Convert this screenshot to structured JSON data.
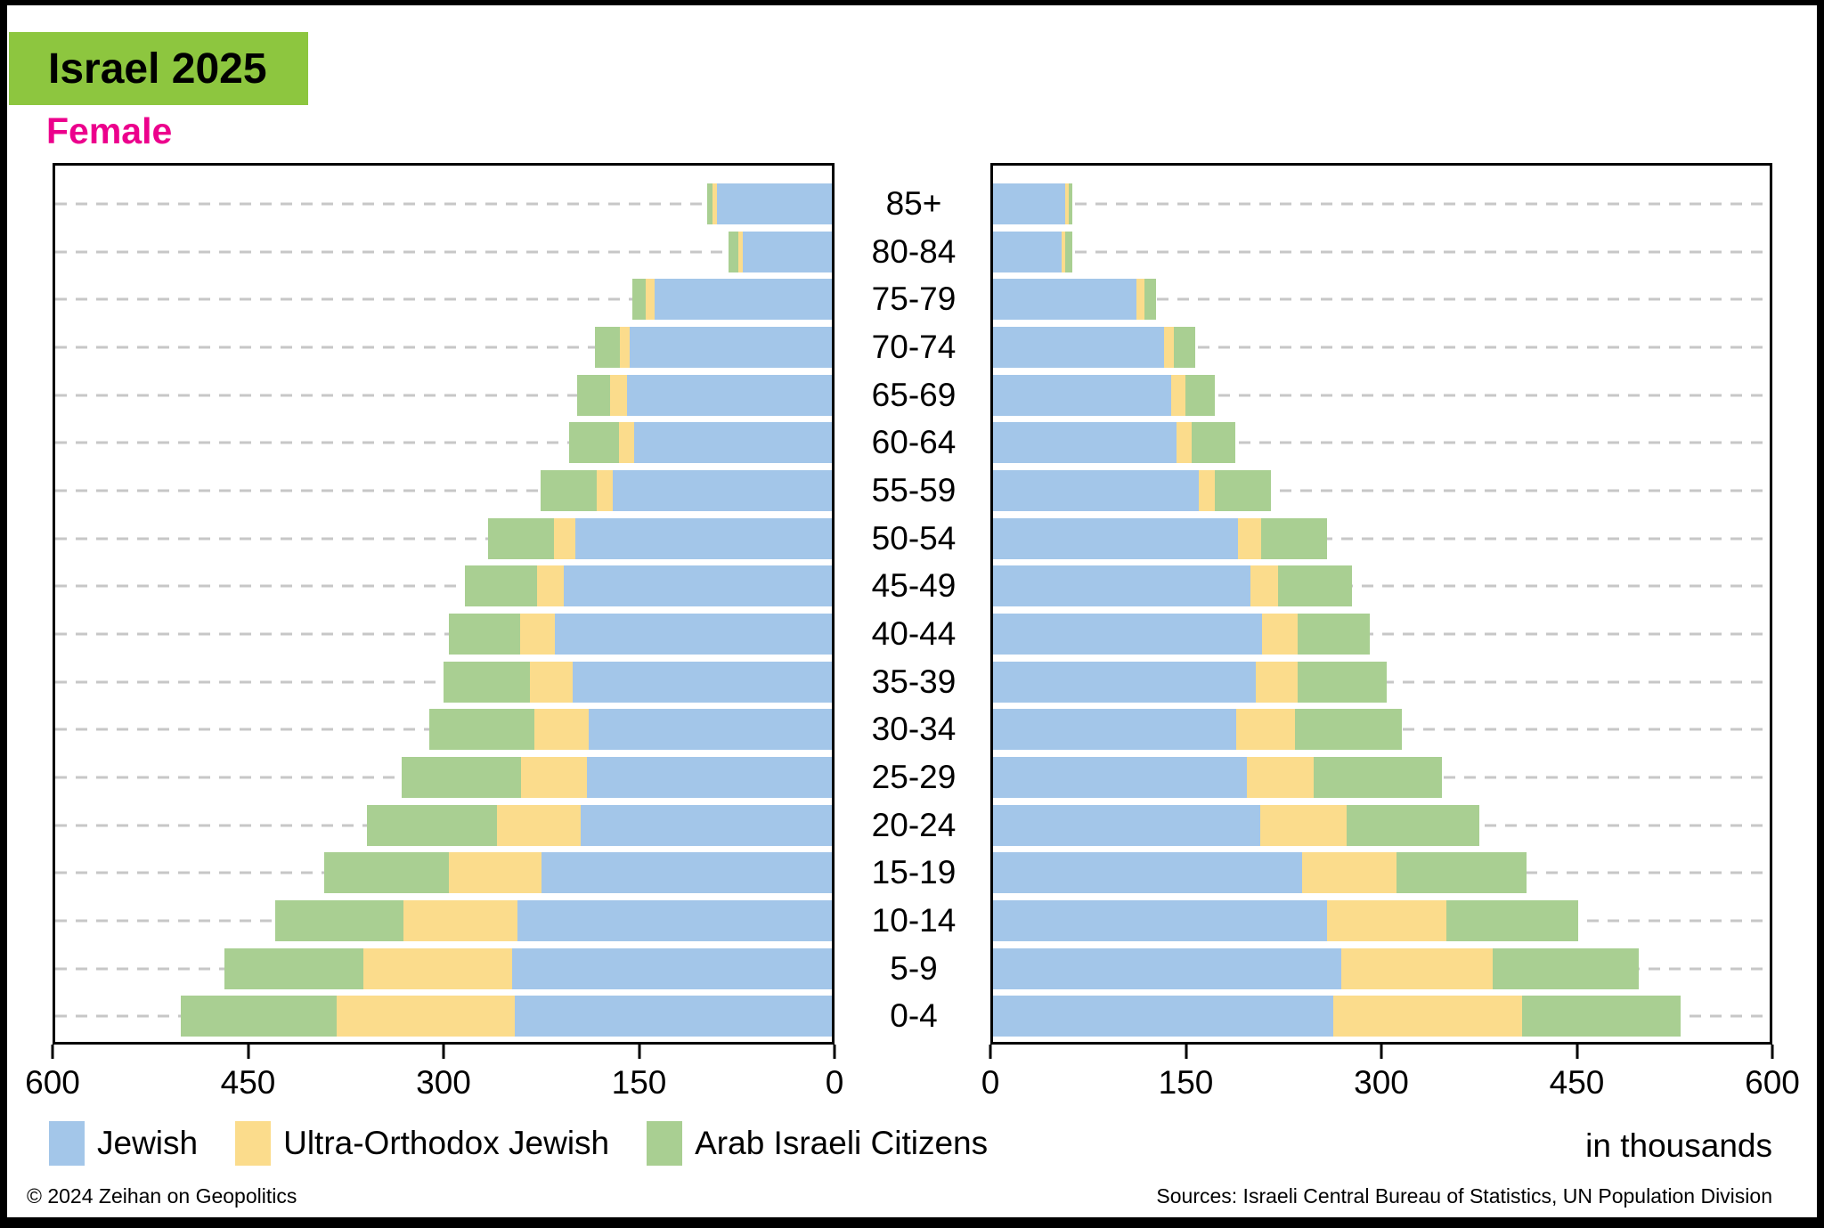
{
  "title": "Israel 2025",
  "left_panel_label": "Female",
  "in_thousands_note": "in thousands",
  "footer": {
    "copyright": "© 2024 Zeihan on Geopolitics",
    "sources": "Sources: Israeli Central Bureau of Statistics, UN Population Division"
  },
  "colors": {
    "title_background": "#8dc63f",
    "female_label": "#ec008c",
    "jewish": "#a3c6e9",
    "ultra_orthodox": "#fbdc8c",
    "arab": "#a9cf92",
    "gridline": "#c7c7c7",
    "frame": "#000000"
  },
  "legend": [
    {
      "label": "Jewish",
      "color": "#a3c6e9"
    },
    {
      "label": "Ultra-Orthodox Jewish",
      "color": "#fbdc8c"
    },
    {
      "label": "Arab Israeli Citizens",
      "color": "#a9cf92"
    }
  ],
  "chart_data": {
    "type": "bar",
    "subtype": "population-pyramid-stacked-horizontal",
    "unit": "thousands",
    "xlim": [
      0,
      600
    ],
    "x_ticks": [
      0,
      150,
      300,
      450,
      600
    ],
    "x_tick_labels_left_panel": [
      "600",
      "450",
      "300",
      "150",
      "0"
    ],
    "x_tick_labels_right_panel": [
      "0",
      "150",
      "300",
      "450",
      "600"
    ],
    "grid": "dashed-horizontal",
    "age_groups": [
      "85+",
      "80-84",
      "75-79",
      "70-74",
      "65-69",
      "60-64",
      "55-59",
      "50-54",
      "45-49",
      "40-44",
      "35-39",
      "30-34",
      "25-29",
      "20-24",
      "15-19",
      "10-14",
      "5-9",
      "0-4"
    ],
    "series_keys": [
      {
        "key": "jewish",
        "name": "Jewish",
        "color": "#a3c6e9"
      },
      {
        "key": "ultra_orthodox",
        "name": "Ultra-Orthodox Jewish",
        "color": "#fbdc8c"
      },
      {
        "key": "arab",
        "name": "Arab Israeli Citizens",
        "color": "#a9cf92"
      }
    ],
    "left_panel": {
      "label": "Female",
      "direction": "right-to-left",
      "jewish": [
        89,
        69,
        137,
        156,
        158,
        153,
        169,
        198,
        207,
        214,
        200,
        188,
        189,
        194,
        224,
        243,
        247,
        245
      ],
      "ultra_orthodox": [
        3,
        3,
        6.5,
        8,
        13,
        11.5,
        13,
        17,
        21,
        27,
        33,
        41.5,
        51,
        65,
        72,
        88,
        115,
        137.5
      ],
      "arab": [
        4.5,
        8,
        10.5,
        19,
        25.5,
        38.5,
        43,
        50.5,
        55.5,
        55,
        67,
        81.5,
        92.5,
        100,
        96,
        99,
        107.5,
        120.5
      ]
    },
    "right_panel": {
      "label": "",
      "direction": "left-to-right",
      "jewish": [
        56,
        53,
        111,
        132,
        137.5,
        141.5,
        159,
        189,
        199,
        208,
        203,
        187.5,
        196,
        206.5,
        239,
        258,
        269,
        263
      ],
      "ultra_orthodox": [
        2.5,
        2.5,
        6,
        8,
        11,
        12,
        12,
        18,
        21,
        27,
        32.5,
        46,
        51.5,
        66.5,
        73,
        92,
        117,
        146
      ],
      "arab": [
        2.5,
        5.5,
        9,
        16.5,
        23,
        34,
        44,
        51,
        57,
        56,
        68.5,
        82.5,
        99.5,
        103,
        100,
        102,
        113,
        122
      ]
    }
  }
}
